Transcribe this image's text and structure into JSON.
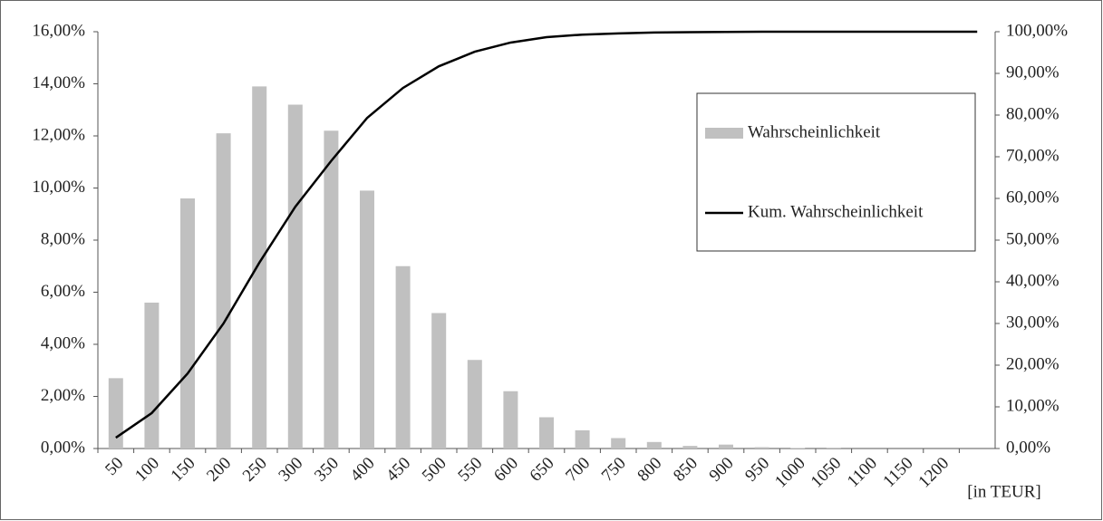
{
  "chart_data": {
    "type": "bar",
    "categories": [
      "50",
      "100",
      "150",
      "200",
      "250",
      "300",
      "350",
      "400",
      "450",
      "500",
      "550",
      "600",
      "650",
      "700",
      "750",
      "800",
      "850",
      "900",
      "950",
      "1000",
      "1050",
      "1100",
      "1150",
      "1200",
      null
    ],
    "series": [
      {
        "name": "Wahrscheinlichkeit",
        "type": "bar",
        "color": "#c0c0c0",
        "values": [
          2.7,
          5.6,
          9.6,
          12.1,
          13.9,
          13.2,
          12.2,
          9.9,
          7.0,
          5.2,
          3.4,
          2.2,
          1.2,
          0.7,
          0.4,
          0.25,
          0.1,
          0.15,
          0.05,
          0.02,
          0.03,
          0,
          0,
          0,
          0
        ]
      },
      {
        "name": "Kum. Wahrscheinlichkeit",
        "type": "line",
        "color": "#000000",
        "axis": "y2",
        "values": [
          2.6,
          8.5,
          18,
          30,
          44.6,
          58,
          69,
          79.3,
          86.5,
          91.7,
          95.2,
          97.4,
          98.7,
          99.3,
          99.6,
          99.8,
          99.9,
          99.95,
          100,
          100,
          100,
          100,
          100,
          100,
          100
        ]
      }
    ],
    "ylim": [
      0,
      16
    ],
    "yticks": [
      {
        "value": 0,
        "label": "0,00%"
      },
      {
        "value": 2,
        "label": "2,00%"
      },
      {
        "value": 4,
        "label": "4,00%"
      },
      {
        "value": 6,
        "label": "6,00%"
      },
      {
        "value": 8,
        "label": "8,00%"
      },
      {
        "value": 10,
        "label": "10,00%"
      },
      {
        "value": 12,
        "label": "12,00%"
      },
      {
        "value": 14,
        "label": "14,00%"
      },
      {
        "value": 16,
        "label": "16,00%"
      }
    ],
    "y2lim": [
      0,
      100
    ],
    "y2ticks": [
      {
        "value": 0,
        "label": "0,00%"
      },
      {
        "value": 10,
        "label": "10,00%"
      },
      {
        "value": 20,
        "label": "20,00%"
      },
      {
        "value": 30,
        "label": "30,00%"
      },
      {
        "value": 40,
        "label": "40,00%"
      },
      {
        "value": 50,
        "label": "50,00%"
      },
      {
        "value": 60,
        "label": "60,00%"
      },
      {
        "value": 70,
        "label": "70,00%"
      },
      {
        "value": 80,
        "label": "80,00%"
      },
      {
        "value": 90,
        "label": "90,00%"
      },
      {
        "value": 100,
        "label": "100,00%"
      }
    ],
    "x_unit_label": "[in TEUR]",
    "legend": "upper right",
    "grid": false
  }
}
